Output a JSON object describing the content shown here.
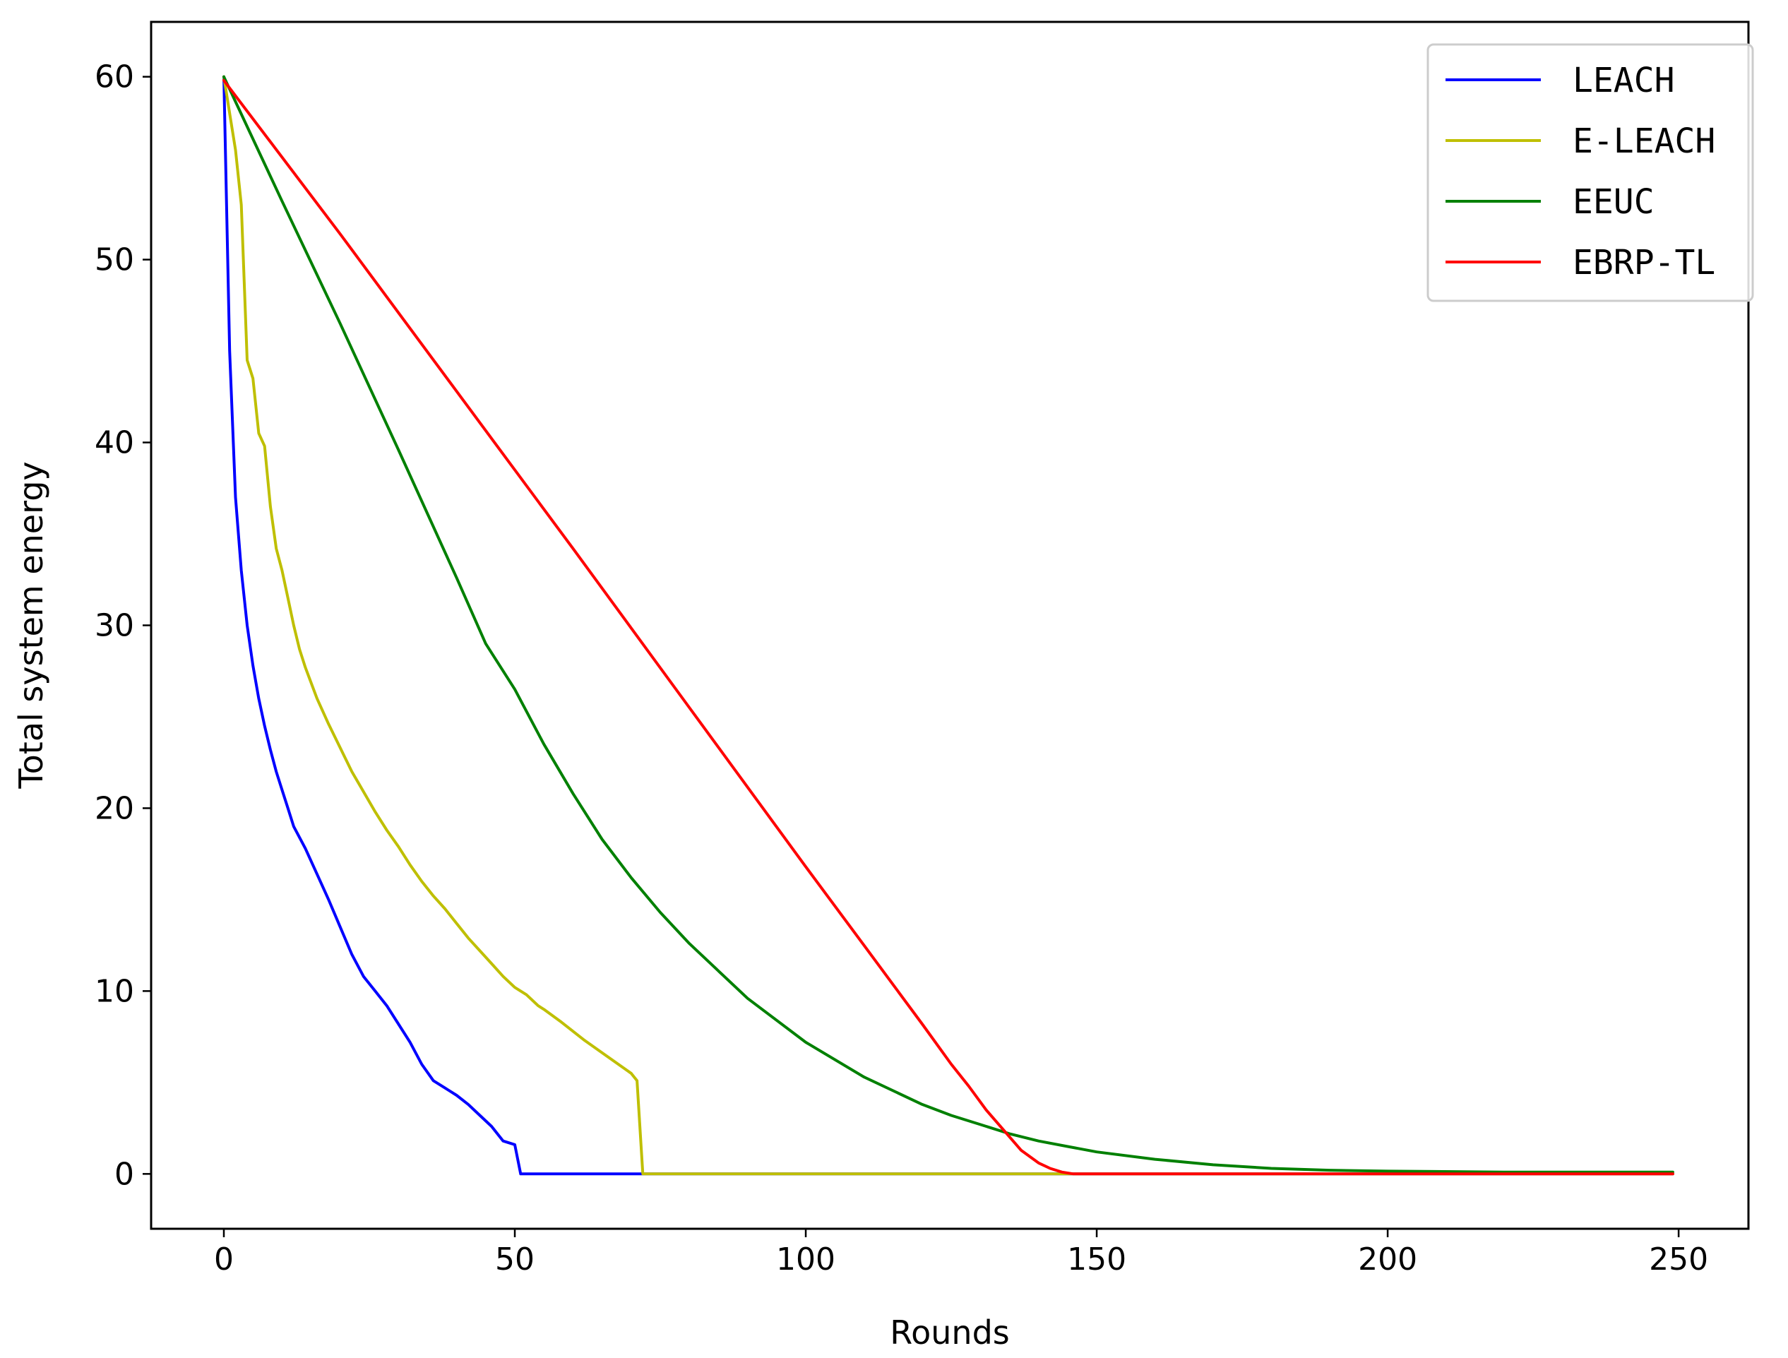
{
  "chart_data": {
    "type": "line",
    "xlabel": "Rounds",
    "ylabel": "Total system energy",
    "xlim": [
      -12.5,
      262
    ],
    "ylim": [
      -3,
      63
    ],
    "xticks": [
      0,
      50,
      100,
      150,
      200,
      250
    ],
    "yticks": [
      0,
      10,
      20,
      30,
      40,
      50,
      60
    ],
    "grid": false,
    "legend_position": "top-right",
    "series": [
      {
        "name": "LEACH",
        "color": "#0000ff",
        "x": [
          0,
          1,
          2,
          3,
          4,
          5,
          6,
          7,
          8,
          9,
          10,
          11,
          12,
          14,
          16,
          18,
          20,
          22,
          24,
          26,
          28,
          30,
          32,
          34,
          36,
          38,
          40,
          42,
          44,
          46,
          48,
          49,
          50,
          51,
          60,
          72,
          100,
          150,
          200,
          249
        ],
        "y": [
          60,
          45,
          37,
          33,
          30,
          27.8,
          26,
          24.5,
          23.2,
          22,
          21,
          20,
          19,
          17.8,
          16.4,
          15,
          13.5,
          12,
          10.8,
          10,
          9.2,
          8.2,
          7.2,
          6,
          5.1,
          4.7,
          4.3,
          3.8,
          3.2,
          2.6,
          1.8,
          1.7,
          1.6,
          0,
          0,
          0,
          0,
          0,
          0,
          0
        ]
      },
      {
        "name": "E-LEACH",
        "color": "#bfbf00",
        "x": [
          0,
          1,
          2,
          3,
          4,
          5,
          6,
          7,
          8,
          9,
          10,
          11,
          12,
          13,
          14,
          16,
          18,
          20,
          22,
          24,
          26,
          28,
          30,
          32,
          34,
          36,
          38,
          40,
          42,
          44,
          46,
          48,
          50,
          52,
          54,
          55,
          58,
          62,
          66,
          70,
          71,
          72,
          100,
          150,
          200,
          249
        ],
        "y": [
          60,
          58,
          56,
          53,
          44.5,
          43.5,
          40.5,
          39.8,
          36.5,
          34.2,
          33,
          31.5,
          30,
          28.7,
          27.7,
          26,
          24.6,
          23.3,
          22,
          20.9,
          19.8,
          18.8,
          17.9,
          16.9,
          16,
          15.2,
          14.5,
          13.7,
          12.9,
          12.2,
          11.5,
          10.8,
          10.2,
          9.8,
          9.2,
          9,
          8.3,
          7.3,
          6.4,
          5.5,
          5.1,
          0,
          0,
          0,
          0,
          0
        ]
      },
      {
        "name": "EEUC",
        "color": "#008000",
        "x": [
          0,
          10,
          20,
          30,
          40,
          45,
          50,
          55,
          60,
          65,
          70,
          75,
          80,
          90,
          100,
          110,
          120,
          125,
          130,
          135,
          140,
          145,
          150,
          160,
          170,
          180,
          190,
          200,
          220,
          249
        ],
        "y": [
          60,
          53.2,
          46.5,
          39.6,
          32.6,
          29,
          26.5,
          23.5,
          20.8,
          18.3,
          16.2,
          14.3,
          12.6,
          9.6,
          7.2,
          5.3,
          3.8,
          3.2,
          2.7,
          2.2,
          1.8,
          1.5,
          1.2,
          0.8,
          0.5,
          0.3,
          0.2,
          0.15,
          0.1,
          0.1
        ]
      },
      {
        "name": "EBRP-TL",
        "color": "#ff0000",
        "x": [
          0,
          20,
          40,
          60,
          80,
          100,
          110,
          120,
          125,
          128,
          131,
          134,
          137,
          140,
          142,
          144,
          146,
          150,
          200,
          249
        ],
        "y": [
          59.8,
          51.4,
          42.8,
          34.2,
          25.5,
          16.8,
          12.5,
          8.2,
          6,
          4.8,
          3.5,
          2.4,
          1.3,
          0.6,
          0.3,
          0.1,
          0,
          0,
          0,
          0
        ]
      }
    ]
  }
}
